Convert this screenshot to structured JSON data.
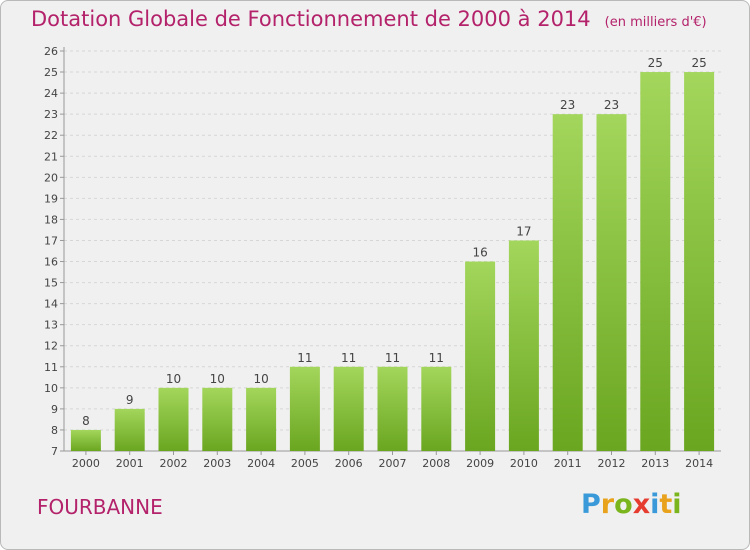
{
  "header": {
    "title": "Dotation Globale de Fonctionnement de 2000 à 2014",
    "subtitle": "(en milliers d'€)"
  },
  "commune": "FOURBANNE",
  "logo": {
    "letters": [
      "P",
      "r",
      "o",
      "x",
      "i",
      "t",
      "i"
    ],
    "colors": [
      "#3a9ad9",
      "#e8a21c",
      "#7ab51d",
      "#e63c2f",
      "#3a9ad9",
      "#e8a21c",
      "#7ab51d"
    ]
  },
  "colors": {
    "bar_light": "#a3d65c",
    "bar_dark": "#6aa620",
    "title": "#b3226a"
  },
  "chart_data": {
    "type": "bar",
    "categories": [
      "2000",
      "2001",
      "2002",
      "2003",
      "2004",
      "2005",
      "2006",
      "2007",
      "2008",
      "2009",
      "2010",
      "2011",
      "2012",
      "2013",
      "2014"
    ],
    "values": [
      8,
      9,
      10,
      10,
      10,
      11,
      11,
      11,
      11,
      16,
      17,
      23,
      23,
      25,
      25
    ],
    "ylim": [
      7,
      26
    ],
    "yticks": [
      7,
      8,
      9,
      10,
      11,
      12,
      13,
      14,
      15,
      16,
      17,
      18,
      19,
      20,
      21,
      22,
      23,
      24,
      25,
      26
    ],
    "grid": true,
    "data_labels": true
  }
}
